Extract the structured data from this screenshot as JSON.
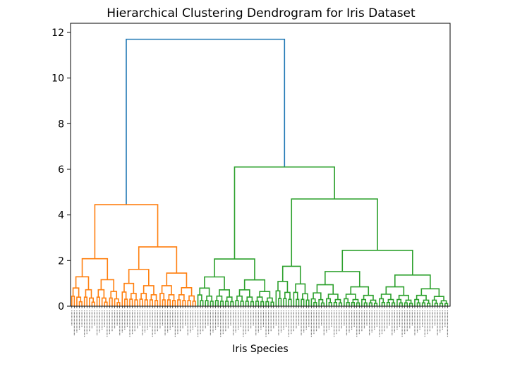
{
  "chart_data": {
    "type": "dendrogram",
    "title": "Hierarchical Clustering Dendrogram for Iris Dataset",
    "xlabel": "Iris Species",
    "ylabel": "",
    "ylim": [
      0,
      12.4
    ],
    "yticks": [
      0,
      2,
      4,
      6,
      8,
      10,
      12
    ],
    "n_leaves": 150,
    "grid": false,
    "colors": {
      "cluster_1": "#ff7f0e",
      "cluster_2": "#2ca02c",
      "root": "#1f77b4"
    },
    "top_merges": [
      {
        "name": "root",
        "height": 11.7,
        "color": "root",
        "children": [
          "cluster-orange",
          "cluster-green"
        ]
      },
      {
        "name": "cluster-orange",
        "height": 4.45,
        "leaves": 50,
        "color": "cluster_1"
      },
      {
        "name": "cluster-green",
        "height": 6.1,
        "leaves": 100,
        "color": "cluster_2"
      },
      {
        "name": "green-left",
        "height": 2.07,
        "color": "cluster_2"
      },
      {
        "name": "green-right",
        "height": 4.7,
        "color": "cluster_2"
      },
      {
        "name": "green-right-a",
        "height": 1.75,
        "color": "cluster_2"
      },
      {
        "name": "green-right-b",
        "height": 2.45,
        "color": "cluster_2"
      },
      {
        "name": "orange-left",
        "height": 2.08,
        "color": "cluster_1"
      },
      {
        "name": "orange-right",
        "height": 2.6,
        "color": "cluster_1"
      }
    ]
  }
}
